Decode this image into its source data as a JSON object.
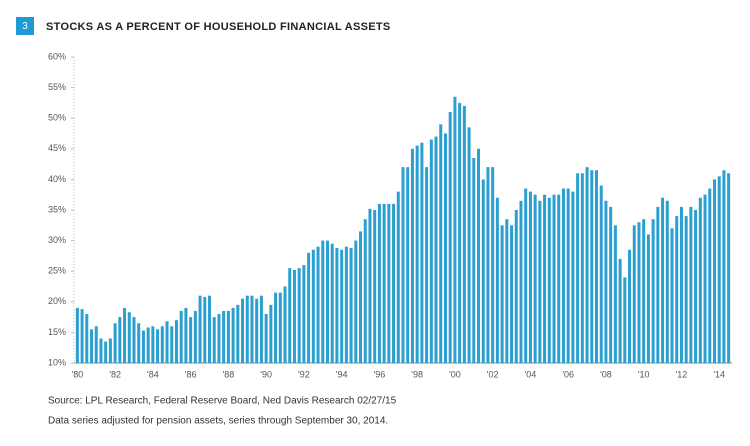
{
  "chart_data": {
    "type": "bar",
    "badge": "3",
    "title": "STOCKS AS A PERCENT OF HOUSEHOLD FINANCIAL ASSETS",
    "source": "Source: LPL Research, Federal Reserve Board, Ned Davis Research  02/27/15",
    "note": "Data series adjusted for pension assets, series through September 30, 2014.",
    "color": "#2a9fd0",
    "categories": [
      "'80",
      null,
      null,
      null,
      null,
      null,
      null,
      null,
      "'82",
      null,
      null,
      null,
      null,
      null,
      null,
      null,
      "'84",
      null,
      null,
      null,
      null,
      null,
      null,
      null,
      "'86",
      null,
      null,
      null,
      null,
      null,
      null,
      null,
      "'88",
      null,
      null,
      null,
      null,
      null,
      null,
      null,
      "'90",
      null,
      null,
      null,
      null,
      null,
      null,
      null,
      "'92",
      null,
      null,
      null,
      null,
      null,
      null,
      null,
      "'94",
      null,
      null,
      null,
      null,
      null,
      null,
      null,
      "'96",
      null,
      null,
      null,
      null,
      null,
      null,
      null,
      "'98",
      null,
      null,
      null,
      null,
      null,
      null,
      null,
      "'00",
      null,
      null,
      null,
      null,
      null,
      null,
      null,
      "'02",
      null,
      null,
      null,
      null,
      null,
      null,
      null,
      "'04",
      null,
      null,
      null,
      null,
      null,
      null,
      null,
      "'06",
      null,
      null,
      null,
      null,
      null,
      null,
      null,
      "'08",
      null,
      null,
      null,
      null,
      null,
      null,
      null,
      "'10",
      null,
      null,
      null,
      null,
      null,
      null,
      null,
      "'12",
      null,
      null,
      null,
      null,
      null,
      null,
      null,
      "'14",
      null,
      null
    ],
    "values": [
      19,
      18.8,
      18,
      15.5,
      16,
      14,
      13.5,
      14,
      16.5,
      17.5,
      19,
      18.3,
      17.5,
      16.5,
      15.3,
      15.8,
      16,
      15.5,
      16,
      16.8,
      16,
      17,
      18.5,
      19,
      17.5,
      18.5,
      21,
      20.8,
      21,
      17.5,
      18,
      18.5,
      18.5,
      19,
      19.5,
      20.5,
      21,
      21,
      20.5,
      21,
      18,
      19.5,
      21.5,
      21.5,
      22.5,
      25.5,
      25.2,
      25.5,
      26,
      28,
      28.5,
      29,
      30,
      30,
      29.5,
      28.8,
      28.5,
      29,
      28.8,
      30,
      31.5,
      33.5,
      35.2,
      35,
      36,
      36,
      36,
      36,
      38,
      42,
      42,
      45,
      45.5,
      46,
      42,
      46.5,
      47,
      49,
      47.5,
      51,
      53.5,
      52.5,
      52,
      48.5,
      43.5,
      45,
      40,
      42,
      42,
      37,
      32.5,
      33.5,
      32.5,
      35,
      36.5,
      38.5,
      38,
      37.5,
      36.5,
      37.5,
      37,
      37.5,
      37.5,
      38.5,
      38.5,
      38,
      41,
      41,
      42,
      41.5,
      41.5,
      39,
      36.5,
      35.5,
      32.5,
      27,
      24,
      28.5,
      32.5,
      33,
      33.5,
      31,
      33.5,
      35.5,
      37,
      36.5,
      32,
      34,
      35.5,
      34,
      35.5,
      35,
      37,
      37.5,
      38.5,
      40,
      40.5,
      41.5,
      41
    ],
    "ylim": [
      10,
      60
    ],
    "yticks": [
      {
        "value": 10,
        "label": "10%"
      },
      {
        "value": 15,
        "label": "15%"
      },
      {
        "value": 20,
        "label": "20%"
      },
      {
        "value": 25,
        "label": "25%"
      },
      {
        "value": 30,
        "label": "30%"
      },
      {
        "value": 35,
        "label": "35%"
      },
      {
        "value": 40,
        "label": "40%"
      },
      {
        "value": 45,
        "label": "45%"
      },
      {
        "value": 50,
        "label": "50%"
      },
      {
        "value": 55,
        "label": "55%"
      },
      {
        "value": 60,
        "label": "60%"
      }
    ],
    "grid": false
  }
}
